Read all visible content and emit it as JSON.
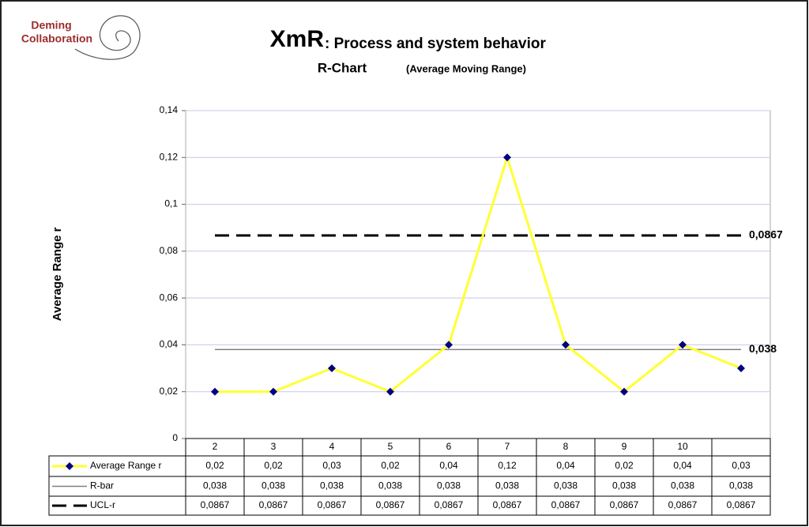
{
  "logo": {
    "line1": "Deming",
    "line2": "Collaboration"
  },
  "chart_data": {
    "type": "line",
    "title": "XmR",
    "title_rest": ": Process and system behavior",
    "subtitle": "R-Chart",
    "subtitle_note": "(Average Moving Range)",
    "y_label": "Average Range r",
    "categories": [
      "2",
      "3",
      "4",
      "5",
      "6",
      "7",
      "8",
      "9",
      "10",
      null
    ],
    "ylim": [
      0,
      0.14
    ],
    "yticks": [
      0,
      {
        "value": 0.02,
        "label": "0,02"
      },
      {
        "value": 0.04,
        "label": "0,04"
      },
      {
        "value": 0.06,
        "label": "0,06"
      },
      {
        "value": 0.08,
        "label": "0,08"
      },
      {
        "value": 0.1,
        "label": "0,1"
      },
      {
        "value": 0.12,
        "label": "0,12"
      },
      {
        "value": 0.14,
        "label": "0,14"
      }
    ],
    "grid": true,
    "series": [
      {
        "name": "Average Range r",
        "color": "#ffff33",
        "marker_color": "#000080",
        "values": [
          0.02,
          0.02,
          0.03,
          0.02,
          0.04,
          0.12,
          0.04,
          0.02,
          0.04,
          0.03
        ],
        "value_labels": [
          "0,02",
          "0,02",
          "0,03",
          "0,02",
          "0,04",
          "0,12",
          "0,04",
          "0,02",
          "0,04",
          "0,03"
        ]
      },
      {
        "name": "R-bar",
        "color": "#808080",
        "values": [
          0.038,
          0.038,
          0.038,
          0.038,
          0.038,
          0.038,
          0.038,
          0.038,
          0.038,
          0.038
        ],
        "value_labels": [
          "0,038",
          "0,038",
          "0,038",
          "0,038",
          "0,038",
          "0,038",
          "0,038",
          "0,038",
          "0,038",
          "0,038"
        ],
        "end_label": "0,038"
      },
      {
        "name": "UCL-r",
        "color": "#000000",
        "dashed": true,
        "values": [
          0.0867,
          0.0867,
          0.0867,
          0.0867,
          0.0867,
          0.0867,
          0.0867,
          0.0867,
          0.0867,
          0.0867
        ],
        "value_labels": [
          "0,0867",
          "0,0867",
          "0,0867",
          "0,0867",
          "0,0867",
          "0,0867",
          "0,0867",
          "0,0867",
          "0,0867",
          "0,0867"
        ],
        "end_label": "0,0867"
      }
    ]
  }
}
